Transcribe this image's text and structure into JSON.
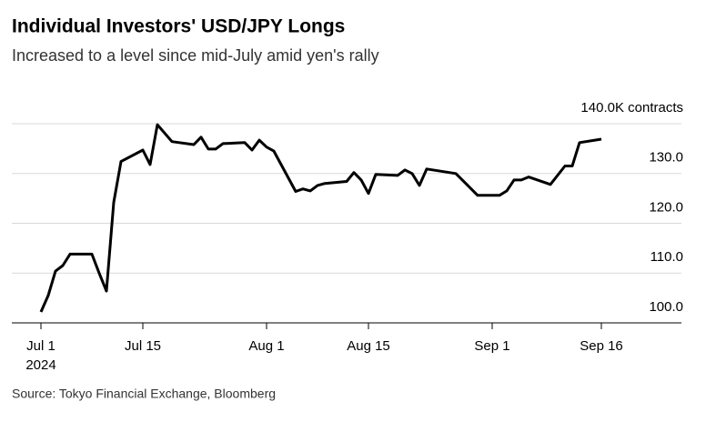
{
  "chart_data": {
    "type": "line",
    "title": "Individual Investors' USD/JPY Longs",
    "subtitle": "Increased to a level since mid-July amid yen's rally",
    "source": "Source: Tokyo Financial Exchange, Bloomberg",
    "x": [
      "2024-07-01",
      "2024-07-02",
      "2024-07-03",
      "2024-07-04",
      "2024-07-05",
      "2024-07-08",
      "2024-07-09",
      "2024-07-10",
      "2024-07-11",
      "2024-07-12",
      "2024-07-15",
      "2024-07-16",
      "2024-07-17",
      "2024-07-19",
      "2024-07-22",
      "2024-07-23",
      "2024-07-24",
      "2024-07-25",
      "2024-07-26",
      "2024-07-29",
      "2024-07-30",
      "2024-07-31",
      "2024-08-01",
      "2024-08-02",
      "2024-08-05",
      "2024-08-06",
      "2024-08-07",
      "2024-08-08",
      "2024-08-09",
      "2024-08-12",
      "2024-08-13",
      "2024-08-14",
      "2024-08-15",
      "2024-08-16",
      "2024-08-19",
      "2024-08-20",
      "2024-08-21",
      "2024-08-22",
      "2024-08-23",
      "2024-08-27",
      "2024-08-30",
      "2024-09-02",
      "2024-09-03",
      "2024-09-04",
      "2024-09-05",
      "2024-09-06",
      "2024-09-09",
      "2024-09-11",
      "2024-09-12",
      "2024-09-13",
      "2024-09-16"
    ],
    "series": [
      {
        "name": "USD/JPY Longs",
        "color": "#000000",
        "values": [
          102.2,
          105.5,
          110.4,
          111.5,
          113.8,
          113.8,
          110,
          106.4,
          124.2,
          132.4,
          134.7,
          131.8,
          139.8,
          136.4,
          135.8,
          137.3,
          134.9,
          134.9,
          136,
          136.2,
          134.7,
          136.7,
          135.3,
          134.5,
          126.4,
          126.9,
          126.5,
          127.6,
          128,
          128.4,
          130.2,
          128.7,
          126,
          129.8,
          129.6,
          130.7,
          130,
          127.6,
          130.9,
          130,
          125.6,
          125.6,
          126.5,
          128.7,
          128.7,
          129.3,
          127.8,
          131.5,
          131.5,
          136.2,
          136.9
        ]
      }
    ],
    "xlim": [
      "2024-06-27",
      "2024-09-27"
    ],
    "xticks": [
      {
        "value": "2024-07-01",
        "label": "Jul 1"
      },
      {
        "value": "2024-07-15",
        "label": "Jul 15"
      },
      {
        "value": "2024-08-01",
        "label": "Aug 1"
      },
      {
        "value": "2024-08-15",
        "label": "Aug 15"
      },
      {
        "value": "2024-09-01",
        "label": "Sep 1"
      },
      {
        "value": "2024-09-16",
        "label": "Sep 16"
      }
    ],
    "x_year_label": "2024",
    "ylim": [
      100,
      140
    ],
    "yticks": [
      {
        "value": 100,
        "label": "100.0"
      },
      {
        "value": 110,
        "label": "110.0"
      },
      {
        "value": 120,
        "label": "120.0"
      },
      {
        "value": 130,
        "label": "130.0"
      },
      {
        "value": 140,
        "label": "140.0K contracts"
      }
    ],
    "grid": true
  }
}
